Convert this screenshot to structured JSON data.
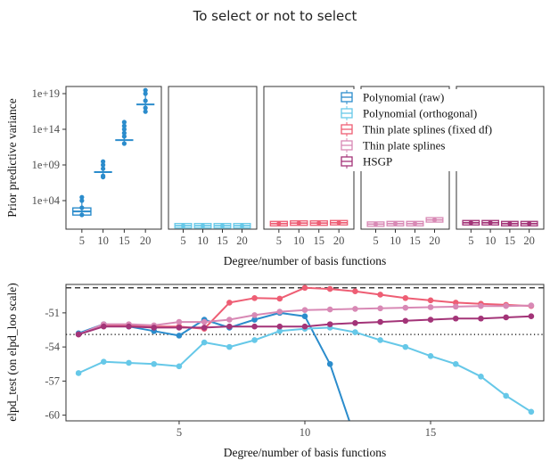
{
  "title": "To select or not to select",
  "colors": {
    "poly_raw": "#2b8ccc",
    "poly_orth": "#66c8e8",
    "tps_fixed": "#ee5e74",
    "tps": "#d889b5",
    "hsgp": "#a33478"
  },
  "legend": {
    "items": [
      {
        "key": "poly_raw",
        "label": "Polynomial (raw)"
      },
      {
        "key": "poly_orth",
        "label": "Polynomial (orthogonal)"
      },
      {
        "key": "tps_fixed",
        "label": "Thin plate splines (fixed df)"
      },
      {
        "key": "tps",
        "label": "Thin plate splines"
      },
      {
        "key": "hsgp",
        "label": "HSGP"
      }
    ]
  },
  "chart_data": [
    {
      "type": "box",
      "ylabel": "Prior predictive variance",
      "xlabel": "Degree/number of basis functions",
      "yscale": "log10",
      "ylim": [
        1,
        1e+20
      ],
      "ytick_labels": [
        "1e+04",
        "1e+09",
        "1e+14",
        "1e+19"
      ],
      "ytick_values": [
        10000.0,
        1000000000.0,
        100000000000000.0,
        1e+19
      ],
      "categories": [
        "5",
        "10",
        "15",
        "20"
      ],
      "panels": [
        {
          "series": "poly_raw",
          "median": [
            300,
            100000000.0,
            3000000000000.0,
            3e+17
          ],
          "points": [
            [
              100,
              1000.0,
              10000.0,
              30000.0
            ],
            [
              20000000.0,
              30000000.0,
              300000000.0,
              1000000000.0,
              3000000000.0
            ],
            [
              1000000000000.0,
              10000000000000.0,
              30000000000000.0,
              100000000000000.0,
              300000000000000.0,
              1000000000000000.0
            ],
            [
              3e+16,
              1e+17,
              1e+18,
              1e+19,
              3e+19
            ]
          ]
        },
        {
          "series": "poly_orth",
          "median": [
            3,
            3,
            3,
            3
          ]
        },
        {
          "series": "tps_fixed",
          "median": [
            6,
            7,
            7,
            8
          ]
        },
        {
          "series": "tps",
          "median": [
            5,
            6,
            6,
            20
          ]
        },
        {
          "series": "hsgp",
          "median": [
            8,
            8,
            6,
            6
          ]
        }
      ]
    },
    {
      "type": "line",
      "ylabel": "elpd_test (on elpd_loo scale)",
      "xlabel": "Degree/number of basis functions",
      "xlim": [
        0.5,
        19.5
      ],
      "ylim": [
        -60.5,
        -48.5
      ],
      "xticks": [
        5,
        10,
        15
      ],
      "yticks": [
        -51,
        -54,
        -57,
        -60
      ],
      "reference_lines": {
        "dashed": -48.8,
        "dotted": -52.9
      },
      "series": [
        {
          "key": "poly_raw",
          "x": [
            1,
            2,
            3,
            4,
            5,
            6,
            7,
            8,
            9,
            10,
            11,
            12
          ],
          "y": [
            -52.8,
            -52.0,
            -52.2,
            -52.6,
            -53.0,
            -51.6,
            -52.3,
            -51.6,
            -51.0,
            -51.3,
            -55.5,
            -62.0
          ]
        },
        {
          "key": "poly_orth",
          "x": [
            1,
            2,
            3,
            4,
            5,
            6,
            7,
            8,
            9,
            10,
            11,
            12,
            13,
            14,
            15,
            16,
            17,
            18,
            19
          ],
          "y": [
            -56.3,
            -55.3,
            -55.4,
            -55.5,
            -55.7,
            -53.6,
            -54.0,
            -53.4,
            -52.6,
            -52.4,
            -52.3,
            -52.7,
            -53.4,
            -54.0,
            -54.8,
            -55.5,
            -56.6,
            -58.3,
            -59.7
          ]
        },
        {
          "key": "tps_fixed",
          "x": [
            1,
            2,
            3,
            4,
            5,
            6,
            7,
            8,
            9,
            10,
            11,
            12,
            13,
            14,
            15,
            16,
            17,
            18,
            19
          ],
          "y": [
            -52.9,
            -52.1,
            -52.1,
            -52.2,
            -52.2,
            -52.4,
            -50.1,
            -49.7,
            -49.75,
            -48.8,
            -48.9,
            -49.1,
            -49.4,
            -49.7,
            -49.9,
            -50.1,
            -50.2,
            -50.3,
            -50.4
          ]
        },
        {
          "key": "tps",
          "x": [
            1,
            2,
            3,
            4,
            5,
            6,
            7,
            8,
            9,
            10,
            11,
            12,
            13,
            14,
            15,
            16,
            17,
            18,
            19
          ],
          "y": [
            -52.9,
            -52.0,
            -52.0,
            -52.1,
            -51.8,
            -51.8,
            -51.6,
            -51.2,
            -50.9,
            -50.75,
            -50.7,
            -50.65,
            -50.6,
            -50.55,
            -50.5,
            -50.45,
            -50.4,
            -50.4,
            -50.35
          ]
        },
        {
          "key": "hsgp",
          "x": [
            1,
            2,
            3,
            4,
            5,
            6,
            7,
            8,
            9,
            10,
            11,
            12,
            13,
            14,
            15,
            16,
            17,
            18,
            19
          ],
          "y": [
            -52.9,
            -52.2,
            -52.2,
            -52.3,
            -52.3,
            -52.3,
            -52.2,
            -52.2,
            -52.2,
            -52.2,
            -52.0,
            -51.9,
            -51.8,
            -51.7,
            -51.6,
            -51.5,
            -51.5,
            -51.4,
            -51.3
          ]
        }
      ]
    }
  ]
}
